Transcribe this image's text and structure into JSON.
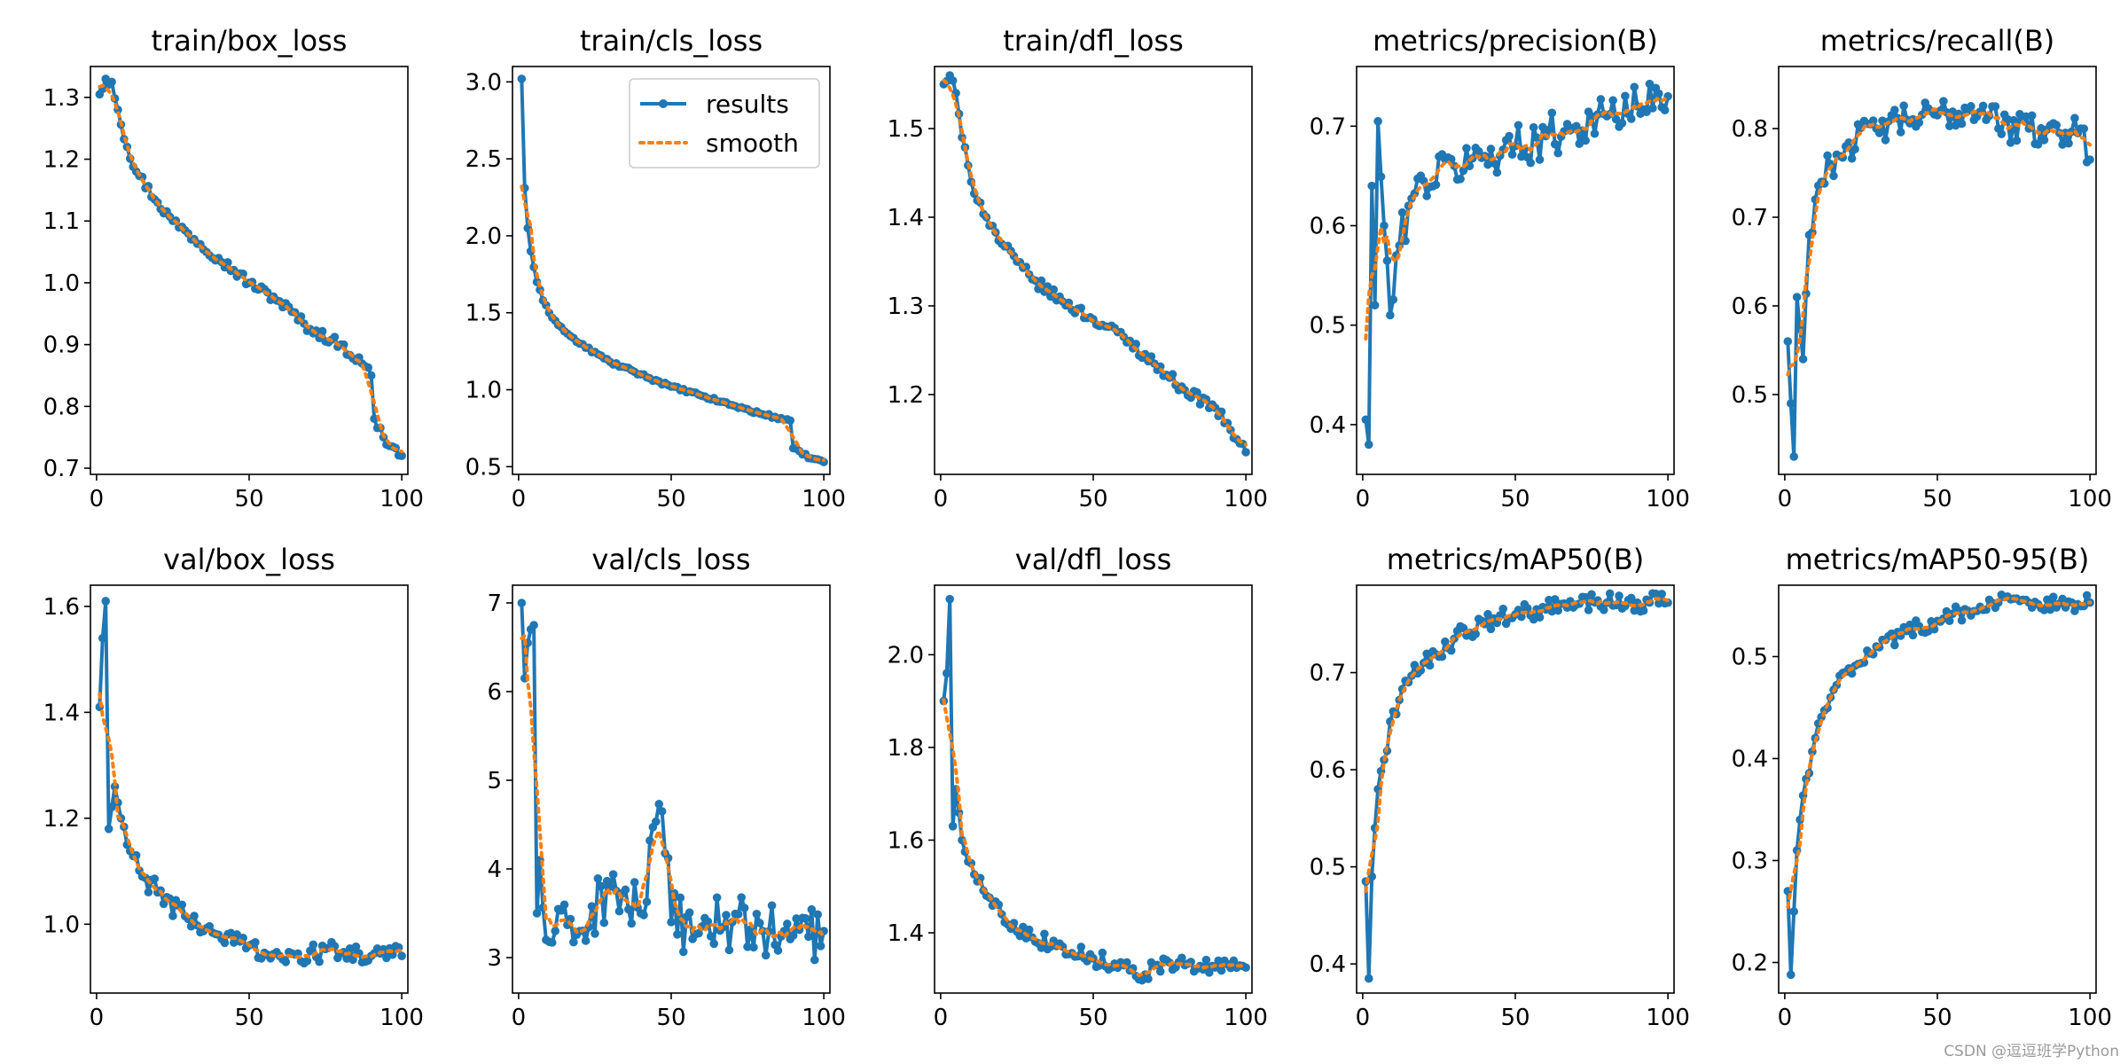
{
  "colors": {
    "results": "#1f77b4",
    "smooth": "#ff7f0e"
  },
  "legend": {
    "results_label": "results",
    "smooth_label": "smooth"
  },
  "watermark": "CSDN @逗逗班学Python",
  "chart_data": [
    {
      "type": "line",
      "title": "train/box_loss",
      "xlim": [
        -2,
        102
      ],
      "ylim": [
        0.69,
        1.35
      ],
      "xticks": [
        0,
        50,
        100
      ],
      "yticks": [
        "0.7",
        "0.8",
        "0.9",
        "1.0",
        "1.1",
        "1.2",
        "1.3"
      ],
      "anchors": [
        [
          1,
          1.305
        ],
        [
          3,
          1.33
        ],
        [
          5,
          1.325
        ],
        [
          7,
          1.28
        ],
        [
          10,
          1.22
        ],
        [
          13,
          1.18
        ],
        [
          20,
          1.13
        ],
        [
          25,
          1.1
        ],
        [
          30,
          1.08
        ],
        [
          40,
          1.04
        ],
        [
          50,
          1.0
        ],
        [
          60,
          0.97
        ],
        [
          70,
          0.925
        ],
        [
          80,
          0.9
        ],
        [
          88,
          0.865
        ],
        [
          90,
          0.85
        ],
        [
          91,
          0.78
        ],
        [
          94,
          0.75
        ],
        [
          97,
          0.735
        ],
        [
          100,
          0.72
        ]
      ],
      "noise": 0.008
    },
    {
      "type": "line",
      "title": "train/cls_loss",
      "xlim": [
        -2,
        102
      ],
      "ylim": [
        0.45,
        3.1
      ],
      "xticks": [
        0,
        50,
        100
      ],
      "yticks": [
        "0.5",
        "1.0",
        "1.5",
        "2.0",
        "2.5",
        "3.0"
      ],
      "legend": true,
      "anchors": [
        [
          1,
          3.02
        ],
        [
          2,
          2.31
        ],
        [
          3,
          2.05
        ],
        [
          4,
          1.9
        ],
        [
          6,
          1.7
        ],
        [
          8,
          1.58
        ],
        [
          10,
          1.5
        ],
        [
          15,
          1.38
        ],
        [
          20,
          1.3
        ],
        [
          30,
          1.18
        ],
        [
          40,
          1.1
        ],
        [
          50,
          1.02
        ],
        [
          60,
          0.96
        ],
        [
          70,
          0.9
        ],
        [
          80,
          0.84
        ],
        [
          89,
          0.8
        ],
        [
          90,
          0.62
        ],
        [
          93,
          0.58
        ],
        [
          97,
          0.55
        ],
        [
          100,
          0.53
        ]
      ],
      "noise": 0.01
    },
    {
      "type": "line",
      "title": "train/dfl_loss",
      "xlim": [
        -2,
        102
      ],
      "ylim": [
        1.11,
        1.57
      ],
      "xticks": [
        0,
        50,
        100
      ],
      "yticks": [
        "1.2",
        "1.3",
        "1.4",
        "1.5"
      ],
      "anchors": [
        [
          1,
          1.55
        ],
        [
          3,
          1.56
        ],
        [
          5,
          1.54
        ],
        [
          7,
          1.49
        ],
        [
          10,
          1.44
        ],
        [
          15,
          1.4
        ],
        [
          20,
          1.37
        ],
        [
          25,
          1.35
        ],
        [
          30,
          1.33
        ],
        [
          40,
          1.305
        ],
        [
          50,
          1.285
        ],
        [
          60,
          1.265
        ],
        [
          70,
          1.235
        ],
        [
          80,
          1.205
        ],
        [
          90,
          1.185
        ],
        [
          95,
          1.16
        ],
        [
          98,
          1.145
        ],
        [
          100,
          1.135
        ]
      ],
      "noise": 0.006
    },
    {
      "type": "line",
      "title": "metrics/precision(B)",
      "xlim": [
        -2,
        102
      ],
      "ylim": [
        0.35,
        0.76
      ],
      "xticks": [
        0,
        50,
        100
      ],
      "yticks": [
        "0.4",
        "0.5",
        "0.6",
        "0.7"
      ],
      "anchors": [
        [
          1,
          0.405
        ],
        [
          2,
          0.38
        ],
        [
          3,
          0.64
        ],
        [
          4,
          0.52
        ],
        [
          5,
          0.705
        ],
        [
          7,
          0.6
        ],
        [
          9,
          0.51
        ],
        [
          12,
          0.58
        ],
        [
          15,
          0.62
        ],
        [
          20,
          0.645
        ],
        [
          30,
          0.66
        ],
        [
          40,
          0.67
        ],
        [
          50,
          0.68
        ],
        [
          60,
          0.69
        ],
        [
          70,
          0.7
        ],
        [
          80,
          0.71
        ],
        [
          90,
          0.72
        ],
        [
          100,
          0.73
        ]
      ],
      "noise": 0.022
    },
    {
      "type": "line",
      "title": "metrics/recall(B)",
      "xlim": [
        -2,
        102
      ],
      "ylim": [
        0.41,
        0.87
      ],
      "xticks": [
        0,
        50,
        100
      ],
      "yticks": [
        "0.5",
        "0.6",
        "0.7",
        "0.8"
      ],
      "anchors": [
        [
          1,
          0.56
        ],
        [
          2,
          0.49
        ],
        [
          3,
          0.43
        ],
        [
          4,
          0.61
        ],
        [
          6,
          0.54
        ],
        [
          8,
          0.68
        ],
        [
          10,
          0.72
        ],
        [
          12,
          0.74
        ],
        [
          15,
          0.76
        ],
        [
          20,
          0.78
        ],
        [
          30,
          0.8
        ],
        [
          40,
          0.81
        ],
        [
          50,
          0.815
        ],
        [
          60,
          0.82
        ],
        [
          68,
          0.825
        ],
        [
          70,
          0.8
        ],
        [
          80,
          0.8
        ],
        [
          90,
          0.795
        ],
        [
          97,
          0.8
        ],
        [
          100,
          0.765
        ]
      ],
      "noise": 0.018
    },
    {
      "type": "line",
      "title": "val/box_loss",
      "xlim": [
        -2,
        102
      ],
      "ylim": [
        0.87,
        1.64
      ],
      "xticks": [
        0,
        50,
        100
      ],
      "yticks": [
        "1.0",
        "1.2",
        "1.4",
        "1.6"
      ],
      "anchors": [
        [
          1,
          1.41
        ],
        [
          2,
          1.54
        ],
        [
          3,
          1.61
        ],
        [
          4,
          1.18
        ],
        [
          6,
          1.26
        ],
        [
          8,
          1.2
        ],
        [
          10,
          1.15
        ],
        [
          15,
          1.09
        ],
        [
          20,
          1.06
        ],
        [
          30,
          1.01
        ],
        [
          40,
          0.98
        ],
        [
          50,
          0.96
        ],
        [
          60,
          0.94
        ],
        [
          67,
          0.93
        ],
        [
          70,
          0.95
        ],
        [
          80,
          0.945
        ],
        [
          90,
          0.94
        ],
        [
          100,
          0.94
        ]
      ],
      "noise": 0.02
    },
    {
      "type": "line",
      "title": "val/cls_loss",
      "xlim": [
        -2,
        102
      ],
      "ylim": [
        2.6,
        7.2
      ],
      "xticks": [
        0,
        50,
        100
      ],
      "yticks": [
        "3",
        "4",
        "5",
        "6",
        "7"
      ],
      "anchors": [
        [
          1,
          7.0
        ],
        [
          2,
          6.15
        ],
        [
          3,
          6.55
        ],
        [
          5,
          6.75
        ],
        [
          6,
          3.5
        ],
        [
          7,
          4.1
        ],
        [
          9,
          3.2
        ],
        [
          12,
          3.3
        ],
        [
          20,
          3.3
        ],
        [
          30,
          3.8
        ],
        [
          40,
          3.5
        ],
        [
          47,
          4.65
        ],
        [
          50,
          3.4
        ],
        [
          60,
          3.35
        ],
        [
          70,
          3.4
        ],
        [
          80,
          3.3
        ],
        [
          90,
          3.25
        ],
        [
          100,
          3.3
        ]
      ],
      "noise": 0.33
    },
    {
      "type": "line",
      "title": "val/dfl_loss",
      "xlim": [
        -2,
        102
      ],
      "ylim": [
        1.27,
        2.15
      ],
      "xticks": [
        0,
        50,
        100
      ],
      "yticks": [
        "1.4",
        "1.6",
        "1.8",
        "2.0"
      ],
      "anchors": [
        [
          1,
          1.9
        ],
        [
          2,
          1.96
        ],
        [
          3,
          2.12
        ],
        [
          4,
          1.63
        ],
        [
          5,
          1.71
        ],
        [
          7,
          1.6
        ],
        [
          10,
          1.55
        ],
        [
          15,
          1.48
        ],
        [
          20,
          1.44
        ],
        [
          30,
          1.39
        ],
        [
          40,
          1.37
        ],
        [
          50,
          1.345
        ],
        [
          60,
          1.33
        ],
        [
          67,
          1.31
        ],
        [
          70,
          1.33
        ],
        [
          80,
          1.33
        ],
        [
          90,
          1.325
        ],
        [
          100,
          1.325
        ]
      ],
      "noise": 0.017
    },
    {
      "type": "line",
      "title": "metrics/mAP50(B)",
      "xlim": [
        -2,
        102
      ],
      "ylim": [
        0.37,
        0.79
      ],
      "xticks": [
        0,
        50,
        100
      ],
      "yticks": [
        "0.4",
        "0.5",
        "0.6",
        "0.7"
      ],
      "anchors": [
        [
          1,
          0.485
        ],
        [
          2,
          0.385
        ],
        [
          3,
          0.49
        ],
        [
          4,
          0.54
        ],
        [
          5,
          0.58
        ],
        [
          7,
          0.61
        ],
        [
          10,
          0.66
        ],
        [
          15,
          0.69
        ],
        [
          20,
          0.71
        ],
        [
          30,
          0.735
        ],
        [
          40,
          0.75
        ],
        [
          50,
          0.76
        ],
        [
          60,
          0.765
        ],
        [
          70,
          0.77
        ],
        [
          80,
          0.772
        ],
        [
          90,
          0.772
        ],
        [
          100,
          0.772
        ]
      ],
      "noise": 0.01
    },
    {
      "type": "line",
      "title": "metrics/mAP50-95(B)",
      "xlim": [
        -2,
        102
      ],
      "ylim": [
        0.17,
        0.57
      ],
      "xticks": [
        0,
        50,
        100
      ],
      "yticks": [
        "0.2",
        "0.3",
        "0.4",
        "0.5"
      ],
      "anchors": [
        [
          1,
          0.27
        ],
        [
          2,
          0.188
        ],
        [
          3,
          0.25
        ],
        [
          4,
          0.31
        ],
        [
          5,
          0.34
        ],
        [
          7,
          0.38
        ],
        [
          10,
          0.42
        ],
        [
          15,
          0.46
        ],
        [
          20,
          0.485
        ],
        [
          30,
          0.51
        ],
        [
          40,
          0.525
        ],
        [
          50,
          0.535
        ],
        [
          60,
          0.545
        ],
        [
          70,
          0.553
        ],
        [
          80,
          0.553
        ],
        [
          90,
          0.552
        ],
        [
          100,
          0.553
        ]
      ],
      "noise": 0.008
    }
  ]
}
